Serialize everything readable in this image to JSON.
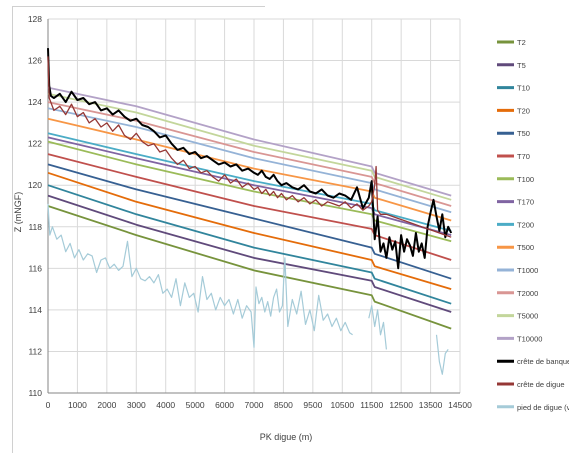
{
  "chart_data": {
    "type": "line",
    "xlabel": "PK digue (m)",
    "ylabel": "Z (mNGF)",
    "xlim": [
      0,
      14500
    ],
    "ylim": [
      110,
      128
    ],
    "x_ticks": [
      0,
      1000,
      2000,
      3000,
      4000,
      5000,
      6000,
      7000,
      8500,
      9500,
      10500,
      11500,
      12500,
      13500,
      14500
    ],
    "x_tick_labels": [
      "0",
      "1000",
      "2000",
      "3000",
      "4000",
      "5000",
      "6000",
      "7000",
      "8500",
      "9500",
      "10500",
      "11500",
      "12500",
      "13500",
      "14500"
    ],
    "y_ticks": [
      110,
      112,
      114,
      116,
      118,
      120,
      122,
      124,
      126,
      128
    ],
    "grid": true,
    "legend_position": "right",
    "series": [
      {
        "name": "T2",
        "color": "#77933c",
        "x": [
          0,
          3000,
          7000,
          11500,
          11600,
          14200
        ],
        "y": [
          119.0,
          117.6,
          115.9,
          114.7,
          114.4,
          113.1
        ]
      },
      {
        "name": "T5",
        "color": "#604a7b",
        "x": [
          0,
          3000,
          7000,
          11500,
          11600,
          14200
        ],
        "y": [
          119.5,
          118.1,
          116.5,
          115.4,
          115.1,
          113.9
        ]
      },
      {
        "name": "T10",
        "color": "#31859c",
        "x": [
          0,
          3000,
          7000,
          11500,
          11600,
          14200
        ],
        "y": [
          120.0,
          118.6,
          117.0,
          115.8,
          115.5,
          114.3
        ]
      },
      {
        "name": "T20",
        "color": "#e46c0a",
        "x": [
          0,
          3000,
          7000,
          11500,
          11600,
          14200
        ],
        "y": [
          120.6,
          119.2,
          117.7,
          116.4,
          116.1,
          115.0
        ]
      },
      {
        "name": "T50",
        "color": "#376092",
        "x": [
          0,
          3000,
          7000,
          11500,
          11600,
          14200
        ],
        "y": [
          121.0,
          119.8,
          118.4,
          117.0,
          116.7,
          115.5
        ]
      },
      {
        "name": "T70",
        "color": "#c0504d",
        "x": [
          0,
          3000,
          7000,
          11500,
          11600,
          14200
        ],
        "y": [
          121.5,
          120.4,
          119.0,
          117.9,
          117.6,
          116.4
        ]
      },
      {
        "name": "T100",
        "color": "#9bbb59",
        "x": [
          0,
          3000,
          7000,
          11500,
          11600,
          14200
        ],
        "y": [
          122.1,
          121.0,
          119.7,
          118.6,
          118.3,
          117.3
        ]
      },
      {
        "name": "T170",
        "color": "#8064a2",
        "x": [
          0,
          3000,
          7000,
          11500,
          11600,
          14200
        ],
        "y": [
          122.3,
          121.3,
          120.0,
          118.9,
          118.6,
          117.6
        ]
      },
      {
        "name": "T200",
        "color": "#4bacc6",
        "x": [
          0,
          3000,
          7000,
          11500,
          11600,
          14200
        ],
        "y": [
          122.5,
          121.5,
          120.2,
          119.1,
          118.8,
          117.8
        ]
      },
      {
        "name": "T500",
        "color": "#f79646",
        "x": [
          0,
          3000,
          7000,
          11500,
          11600,
          14200
        ],
        "y": [
          123.2,
          122.2,
          120.8,
          119.7,
          119.4,
          118.3
        ]
      },
      {
        "name": "T1000",
        "color": "#95b3d7",
        "x": [
          0,
          3000,
          7000,
          11500,
          11600,
          14200
        ],
        "y": [
          123.7,
          122.8,
          121.3,
          120.1,
          119.8,
          118.7
        ]
      },
      {
        "name": "T2000",
        "color": "#d99694",
        "x": [
          0,
          3000,
          7000,
          11500,
          11600,
          14200
        ],
        "y": [
          124.0,
          123.1,
          121.6,
          120.4,
          120.1,
          119.0
        ]
      },
      {
        "name": "T5000",
        "color": "#c3d69b",
        "x": [
          0,
          3000,
          7000,
          11500,
          11600,
          14200
        ],
        "y": [
          124.4,
          123.5,
          121.9,
          120.7,
          120.4,
          119.3
        ]
      },
      {
        "name": "T10000",
        "color": "#b3a2c7",
        "x": [
          0,
          3000,
          7000,
          11500,
          11600,
          14200
        ],
        "y": [
          124.7,
          123.8,
          122.2,
          120.9,
          120.6,
          119.5
        ]
      },
      {
        "name": "crête de banquette",
        "color": "#000000",
        "width": 2.0,
        "x": [
          0,
          40,
          100,
          200,
          400,
          600,
          800,
          1000,
          1200,
          1400,
          1600,
          1800,
          2000,
          2200,
          2400,
          2600,
          2800,
          3000,
          3200,
          3400,
          3600,
          3800,
          4000,
          4200,
          4400,
          4600,
          4800,
          5000,
          5200,
          5400,
          5600,
          5800,
          6000,
          6200,
          6400,
          6600,
          6800,
          7000,
          7200,
          7400,
          7600,
          7800,
          8000,
          8200,
          8400,
          8600,
          8800,
          9000,
          9200,
          9400,
          9600,
          9800,
          10000,
          10200,
          10400,
          10600,
          10800,
          11000,
          11200,
          11400,
          11500,
          11600,
          11700,
          11800,
          11900,
          12000,
          12100,
          12200,
          12300,
          12400,
          12500,
          12600,
          12700,
          12800,
          12900,
          13000,
          13100,
          13200,
          13300,
          13400,
          13500,
          13600,
          13700,
          13800,
          13900,
          14000,
          14100,
          14200
        ],
        "y": [
          126.6,
          124.8,
          124.3,
          124.2,
          124.4,
          124.0,
          124.5,
          124.1,
          124.2,
          123.9,
          124.0,
          123.6,
          123.7,
          123.4,
          123.6,
          123.3,
          123.1,
          123.2,
          122.9,
          122.8,
          122.6,
          122.3,
          122.4,
          122.0,
          121.7,
          121.8,
          121.5,
          121.6,
          121.3,
          121.4,
          121.2,
          121.0,
          121.1,
          120.9,
          121.0,
          120.7,
          120.8,
          120.6,
          120.5,
          120.7,
          120.4,
          120.3,
          120.5,
          120.2,
          120.0,
          120.1,
          119.9,
          119.8,
          120.0,
          119.7,
          119.6,
          119.8,
          119.5,
          119.4,
          119.6,
          119.5,
          119.3,
          119.9,
          118.9,
          119.4,
          120.2,
          117.4,
          118.5,
          116.8,
          117.2,
          116.5,
          117.5,
          116.9,
          117.3,
          116.0,
          117.6,
          116.8,
          117.4,
          117.1,
          116.6,
          117.7,
          116.8,
          117.2,
          116.5,
          118.0,
          118.7,
          119.3,
          118.5,
          117.8,
          118.6,
          117.5,
          118.0,
          117.7
        ]
      },
      {
        "name": "crête de digue",
        "color": "#953735",
        "width": 1.3,
        "x": [
          0,
          40,
          200,
          400,
          600,
          800,
          1000,
          1200,
          1400,
          1600,
          1800,
          2000,
          2200,
          2400,
          2600,
          2800,
          3000,
          3200,
          3400,
          3600,
          3800,
          4000,
          4200,
          4400,
          4600,
          4800,
          5000,
          5200,
          5400,
          5600,
          5800,
          6000,
          6200,
          6400,
          6600,
          6800,
          7000,
          7200,
          7400,
          7600,
          7800,
          8000,
          8200,
          8400,
          8600,
          8800,
          9000,
          9200,
          9400,
          9600,
          9800,
          10000,
          10200,
          10400,
          10600,
          10800,
          11000,
          11200,
          11400,
          11500,
          11600,
          11650,
          11700,
          11800,
          12000,
          12200,
          12400,
          12600,
          12800,
          13000,
          13200,
          13400,
          13600,
          13800,
          14000,
          14200
        ],
        "y": [
          126.2,
          124.2,
          123.6,
          123.8,
          123.4,
          123.9,
          123.3,
          123.5,
          123.0,
          123.2,
          122.8,
          123.0,
          122.6,
          122.9,
          122.4,
          122.2,
          122.5,
          122.1,
          121.9,
          122.0,
          121.6,
          121.7,
          121.3,
          121.0,
          121.2,
          120.8,
          120.9,
          120.6,
          120.7,
          120.4,
          120.2,
          120.5,
          120.1,
          120.3,
          119.9,
          120.1,
          119.8,
          119.9,
          119.6,
          119.8,
          119.5,
          119.7,
          119.4,
          119.6,
          119.3,
          119.5,
          119.2,
          119.4,
          119.1,
          119.3,
          119.0,
          119.2,
          119.1,
          119.0,
          119.2,
          118.9,
          119.1,
          118.8,
          119.0,
          119.2,
          120.0,
          120.9,
          118.8,
          118.6,
          118.6,
          118.5,
          118.4,
          118.3,
          118.2,
          118.1,
          118.0,
          117.9,
          117.8,
          117.7,
          117.6,
          117.5
        ]
      },
      {
        "name": "pied de digue (val)",
        "color": "#a5cbd8",
        "width": 1.2,
        "x": [
          0,
          60,
          150,
          300,
          450,
          600,
          750,
          900,
          1050,
          1200,
          1350,
          1500,
          1650,
          1800,
          1950,
          2100,
          2250,
          2400,
          2550,
          2700,
          2850,
          3000,
          3150,
          3300,
          3450,
          3600,
          3750,
          3900,
          4050,
          4200,
          4350,
          4500,
          4650,
          4800,
          4950,
          5100,
          5250,
          5400,
          5550,
          5700,
          5850,
          6000,
          6150,
          6300,
          6450,
          6600,
          6750,
          6900,
          7000,
          7100,
          7250,
          7400,
          7550,
          7700,
          7850,
          8000,
          8150,
          8300,
          8450,
          8550,
          8650,
          8800,
          8950,
          9100,
          9250,
          9400,
          9550,
          9700,
          9850,
          10000,
          10150,
          10300,
          10450,
          10600,
          10750,
          10850
        ],
        "y": [
          119.1,
          117.6,
          118.0,
          117.4,
          117.6,
          116.8,
          117.2,
          116.5,
          116.9,
          116.4,
          116.7,
          116.6,
          115.8,
          116.4,
          116.5,
          116.0,
          116.2,
          115.9,
          116.1,
          117.3,
          115.6,
          116.0,
          115.5,
          115.4,
          115.6,
          115.3,
          115.7,
          114.8,
          115.0,
          114.6,
          115.5,
          114.2,
          115.3,
          114.6,
          114.8,
          113.9,
          115.6,
          114.5,
          114.8,
          114.0,
          114.6,
          114.2,
          114.5,
          113.8,
          114.5,
          113.6,
          114.2,
          113.9,
          112.2,
          115.1,
          114.3,
          114.6,
          113.9,
          114.4,
          113.7,
          114.6,
          115.0,
          113.9,
          114.2,
          116.5,
          113.2,
          114.5,
          113.8,
          114.9,
          113.3,
          114.0,
          113.0,
          114.7,
          113.5,
          113.8,
          113.2,
          113.6,
          113.0,
          113.4,
          112.9,
          112.8
        ]
      },
      {
        "name": "pied de digue (val)",
        "color": "#a5cbd8",
        "width": 1.2,
        "legend": false,
        "x": [
          11400,
          11500,
          11600,
          11700,
          11800,
          11900,
          12000
        ],
        "y": [
          113.6,
          114.2,
          113.2,
          114.0,
          112.8,
          113.4,
          112.1
        ]
      },
      {
        "name": "pied de digue (val)",
        "color": "#a5cbd8",
        "width": 1.2,
        "legend": false,
        "x": [
          13700,
          13800,
          13900,
          14000,
          14100
        ],
        "y": [
          112.8,
          111.5,
          110.9,
          111.9,
          112.1
        ]
      }
    ]
  }
}
